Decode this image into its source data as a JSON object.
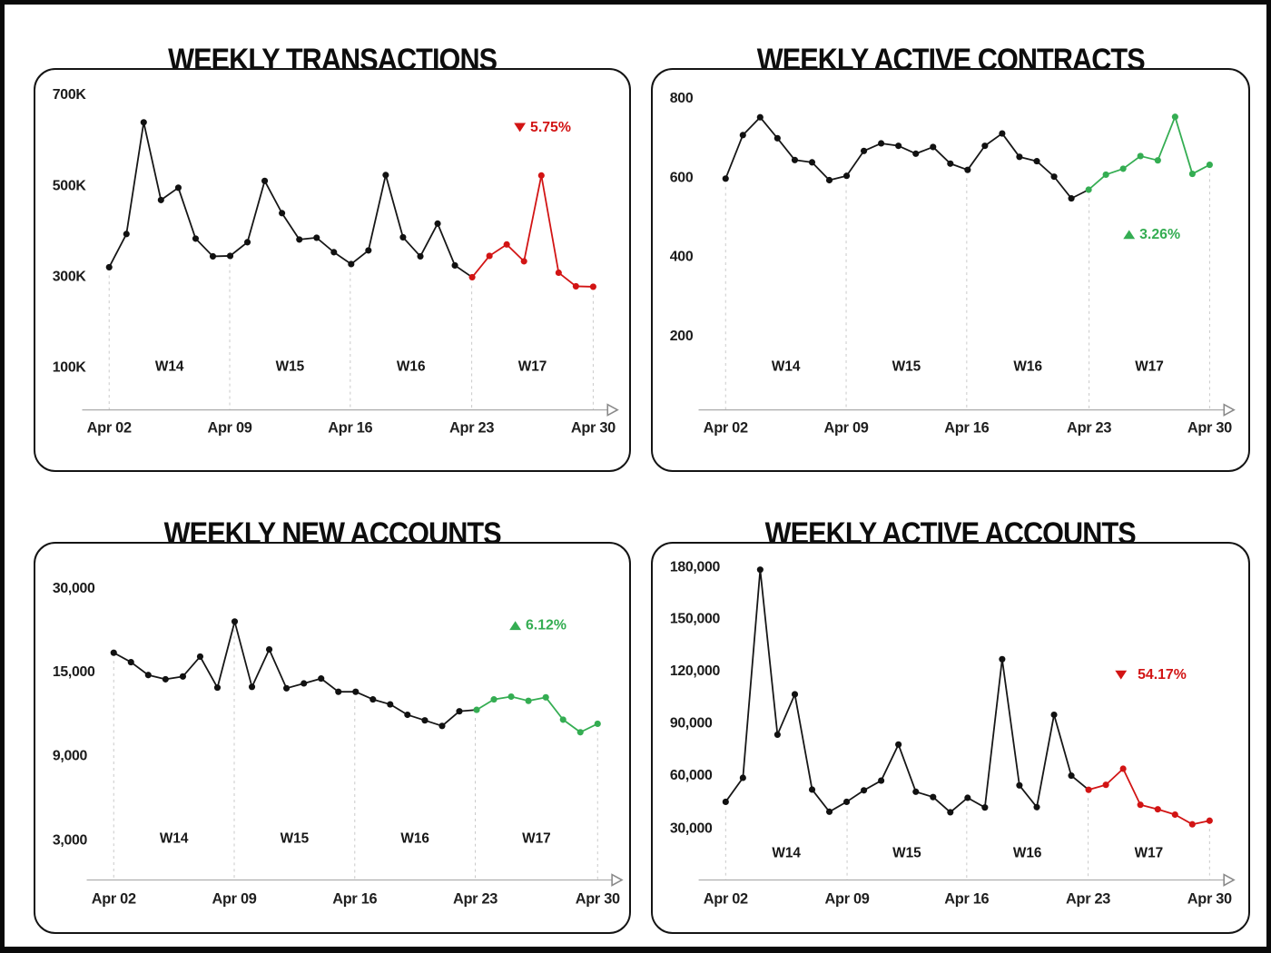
{
  "page": {
    "background": "#ffffff",
    "frame_color": "#0a0a0a"
  },
  "colors": {
    "line": "#161616",
    "point": "#111111",
    "up": "#34ad52",
    "down": "#d21414",
    "gridline": "#c9c9c9",
    "axis": "#ababab",
    "axis_arrow": "#8a8a8a",
    "text": "#1b1b1b"
  },
  "chart_data": [
    {
      "type": "line",
      "title": "WEEKLY TRANSACTIONS",
      "badge": {
        "direction": "down",
        "label": "5.75%"
      },
      "trend": "down",
      "y_ticks": [
        {
          "label": "700K",
          "value": 700000
        },
        {
          "label": "500K",
          "value": 500000
        },
        {
          "label": "300K",
          "value": 300000
        },
        {
          "label": "100K",
          "value": 100000
        }
      ],
      "x_tick_labels": [
        "Apr 02",
        "Apr 09",
        "Apr 16",
        "Apr 23",
        "Apr 30"
      ],
      "week_labels": [
        "W14",
        "W15",
        "W16",
        "W17"
      ],
      "highlight_week_label": "W17",
      "highlight_from_index": 21,
      "values": [
        321000,
        394000,
        640000,
        469000,
        496000,
        384000,
        345000,
        346000,
        376000,
        511000,
        440000,
        382000,
        386000,
        354000,
        328000,
        358000,
        524000,
        387000,
        345000,
        417000,
        325000,
        299000,
        346000,
        371000,
        334000,
        523000,
        309000,
        279000,
        278000
      ]
    },
    {
      "type": "line",
      "title": "WEEKLY ACTIVE CONTRACTS",
      "badge": {
        "direction": "up",
        "label": "3.26%"
      },
      "trend": "up",
      "y_ticks": [
        {
          "label": "800",
          "value": 800
        },
        {
          "label": "600",
          "value": 600
        },
        {
          "label": "400",
          "value": 400
        },
        {
          "label": "200",
          "value": 200
        }
      ],
      "x_tick_labels": [
        "Apr 02",
        "Apr 09",
        "Apr 16",
        "Apr 23",
        "Apr 30"
      ],
      "week_labels": [
        "W14",
        "W15",
        "W16",
        "W17"
      ],
      "highlight_week_label": "W17",
      "highlight_from_index": 21,
      "values": [
        598,
        708,
        753,
        700,
        645,
        639,
        594,
        605,
        668,
        687,
        681,
        661,
        678,
        636,
        620,
        681,
        712,
        653,
        642,
        603,
        548,
        570,
        608,
        623,
        655,
        644,
        754,
        610,
        633
      ]
    },
    {
      "type": "line",
      "title": "WEEKLY NEW ACCOUNTS",
      "badge": {
        "direction": "up",
        "label": "6.12%"
      },
      "trend": "up",
      "y_ticks": [
        {
          "label": "30,000",
          "value": 30000
        },
        {
          "label": "15,000",
          "value": 15000
        },
        {
          "label": "9,000",
          "value": 9000
        },
        {
          "label": "3,000",
          "value": 3000
        }
      ],
      "x_tick_labels": [
        "Apr 02",
        "Apr 09",
        "Apr 16",
        "Apr 23",
        "Apr 30"
      ],
      "week_labels": [
        "W14",
        "W15",
        "W16",
        "W17"
      ],
      "highlight_week_label": "W17",
      "highlight_from_index": 21,
      "values": [
        18500,
        16800,
        14800,
        14500,
        14700,
        17800,
        13900,
        24100,
        13950,
        19100,
        13850,
        14200,
        14550,
        13600,
        13600,
        13050,
        12700,
        11950,
        11550,
        11150,
        12200,
        12300,
        13050,
        13250,
        12950,
        13200,
        11600,
        10700,
        11300
      ]
    },
    {
      "type": "line",
      "title": "WEEKLY ACTIVE ACCOUNTS",
      "badge": {
        "direction": "down",
        "label": "54.17%"
      },
      "trend": "down",
      "y_ticks": [
        {
          "label": "180,000",
          "value": 180000
        },
        {
          "label": "150,000",
          "value": 150000
        },
        {
          "label": "120,000",
          "value": 120000
        },
        {
          "label": "90,000",
          "value": 90000
        },
        {
          "label": "60,000",
          "value": 60000
        },
        {
          "label": "30,000",
          "value": 30000
        }
      ],
      "x_tick_labels": [
        "Apr 02",
        "Apr 09",
        "Apr 16",
        "Apr 23",
        "Apr 30"
      ],
      "week_labels": [
        "W14",
        "W15",
        "W16",
        "W17"
      ],
      "highlight_week_label": "W17",
      "highlight_from_index": 21,
      "values": [
        45200,
        58800,
        178500,
        83600,
        106800,
        52100,
        39600,
        45200,
        51700,
        57200,
        77900,
        50900,
        47900,
        39300,
        47500,
        42000,
        127000,
        54500,
        42200,
        95000,
        60000,
        52000,
        54800,
        64000,
        43500,
        41000,
        38000,
        32500,
        34500
      ]
    }
  ]
}
